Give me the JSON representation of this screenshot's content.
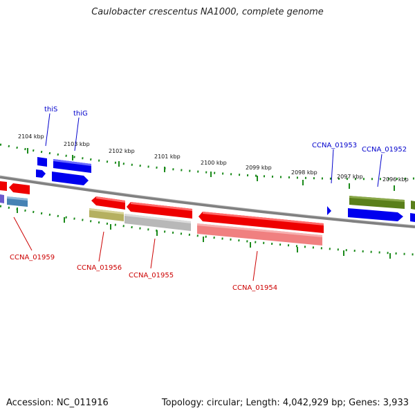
{
  "title": "Caulobacter crescentus NA1000, complete genome",
  "footer": {
    "accession": "Accession: NC_011916",
    "topology": "Topology: circular; Length: 4,042,929 bp; Genes: 3,933"
  },
  "colors": {
    "backbone": "#808080",
    "tick": "#1a8a1a",
    "forward_label": "#0000cc",
    "reverse_label": "#cc0000"
  },
  "scale_labels": [
    "2104 kbp",
    "2103 kbp",
    "2102 kbp",
    "2101 kbp",
    "2100 kbp",
    "2099 kbp",
    "2098 kbp",
    "2097 kbp",
    "2096 kbp"
  ],
  "forward_genes": [
    {
      "label": "thiS",
      "color": "#0000ee"
    },
    {
      "label": "thiG",
      "color": "#0000ee"
    },
    {
      "label": "CCNA_01953",
      "color": "#0000ee"
    },
    {
      "label": "CCNA_01952",
      "color": "#0000ee"
    }
  ],
  "reverse_genes": [
    {
      "label": "CCNA_01959",
      "color": "#ee0000"
    },
    {
      "label": "CCNA_01956",
      "color": "#ee0000"
    },
    {
      "label": "CCNA_01955",
      "color": "#ee0000"
    },
    {
      "label": "CCNA_01954",
      "color": "#ee0000"
    }
  ]
}
